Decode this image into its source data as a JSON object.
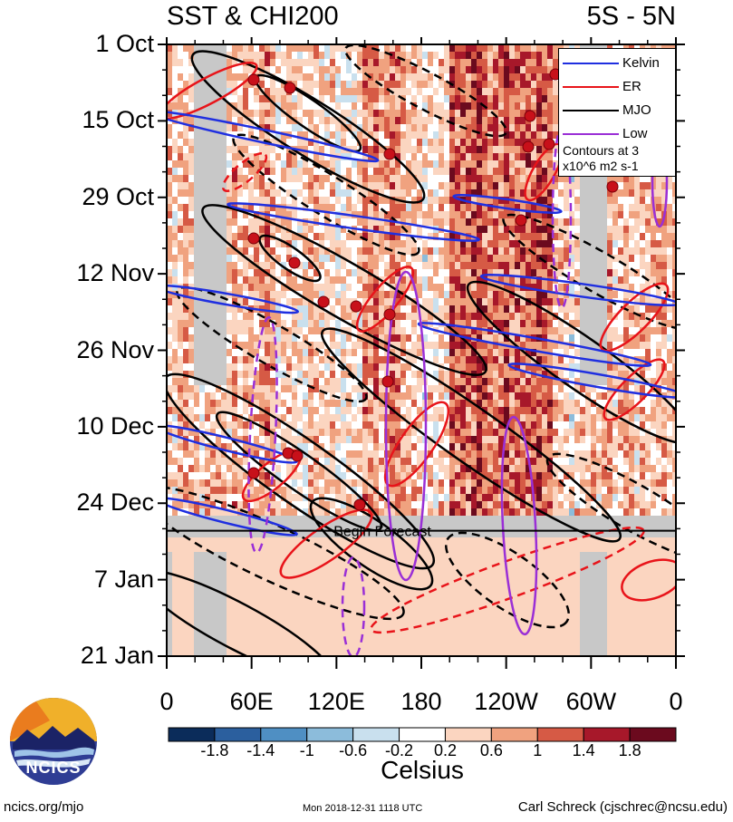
{
  "header": {
    "title": "SST & CHI200",
    "region": "5S - 5N"
  },
  "chart_data": {
    "type": "heatmap",
    "x_axis": {
      "ticks": [
        "0",
        "60E",
        "120E",
        "180",
        "120W",
        "60W",
        "0"
      ],
      "range_deg": [
        0,
        360
      ]
    },
    "y_axis": {
      "ticks": [
        "1 Oct",
        "15 Oct",
        "29 Oct",
        "12 Nov",
        "26 Nov",
        "10 Dec",
        "24 Dec",
        "7 Jan",
        "21 Jan"
      ],
      "range": [
        "1 Oct",
        "21 Jan"
      ],
      "direction": "time-downward"
    },
    "colorbar": {
      "units": "Celsius",
      "labels": [
        "-1.8",
        "-1.4",
        "-1",
        "-0.6",
        "-0.2",
        "0.2",
        "0.6",
        "1",
        "1.4",
        "1.8"
      ],
      "colors": [
        "#0b2c5a",
        "#2b5f9e",
        "#4f8fc3",
        "#8cbcdb",
        "#c9e0ee",
        "#ffffff",
        "#fbd5c0",
        "#f0a27f",
        "#d65a45",
        "#a7182a",
        "#6b0a1e"
      ]
    },
    "legend": {
      "placement": "top-right",
      "entries": [
        {
          "label": "Kelvin",
          "color": "#1f2fe0"
        },
        {
          "label": "ER",
          "color": "#e8141a"
        },
        {
          "label": "MJO",
          "color": "#000000"
        },
        {
          "label": "Low",
          "color": "#9a2fd6"
        }
      ],
      "note": "Contours at 3 x10^6 m2 s-1"
    },
    "annotations": [
      "Begin Forecast"
    ]
  },
  "footer": {
    "logo_text": "NCICS",
    "site": "ncics.org/mjo",
    "timestamp": "Mon 2018-12-31 1118 UTC",
    "author": "Carl Schreck (cjschrec@ncsu.edu)"
  }
}
